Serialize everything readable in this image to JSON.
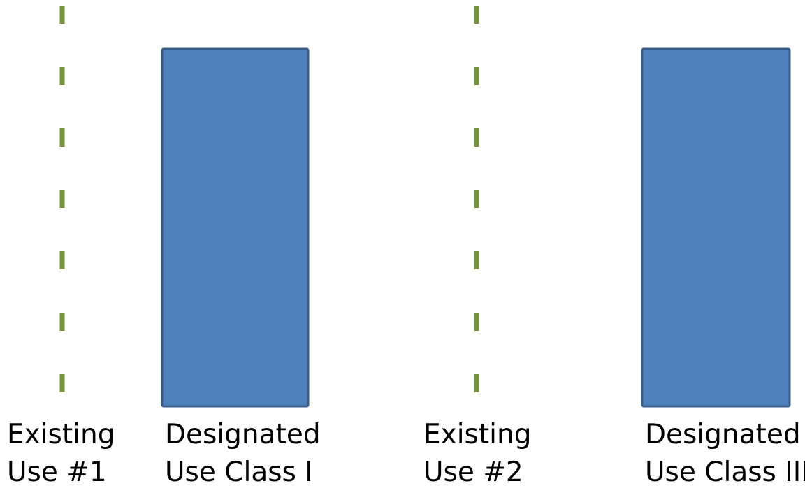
{
  "colors": {
    "existing_use_line": "#77933c",
    "designated_fill": "#4f81bd",
    "designated_stroke": "#385d8a",
    "text": "#000000"
  },
  "items": [
    {
      "kind": "existing-use",
      "lines": [
        "Existing",
        "Use #1"
      ]
    },
    {
      "kind": "designated-use",
      "lines": [
        "Designated",
        "Use Class I"
      ]
    },
    {
      "kind": "existing-use",
      "lines": [
        "Existing",
        "Use #2"
      ]
    },
    {
      "kind": "designated-use",
      "lines": [
        "Designated",
        "Use Class III"
      ]
    }
  ]
}
